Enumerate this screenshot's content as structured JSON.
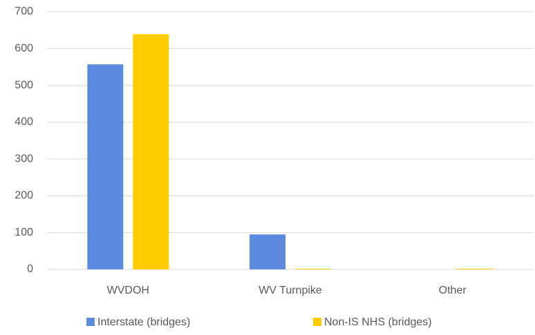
{
  "chart_data": {
    "type": "bar",
    "categories": [
      "WVDOH",
      "WV Turnpike",
      "Other"
    ],
    "series": [
      {
        "name": "Interstate (bridges)",
        "color": "#5b8ade",
        "values": [
          557,
          95,
          0
        ]
      },
      {
        "name": "Non-IS NHS (bridges)",
        "color": "#ffcc00",
        "values": [
          639,
          2,
          2
        ]
      }
    ],
    "ylim": [
      0,
      700
    ],
    "yticks": [
      0,
      100,
      200,
      300,
      400,
      500,
      600,
      700
    ],
    "grid": true,
    "legend": "bottom"
  }
}
